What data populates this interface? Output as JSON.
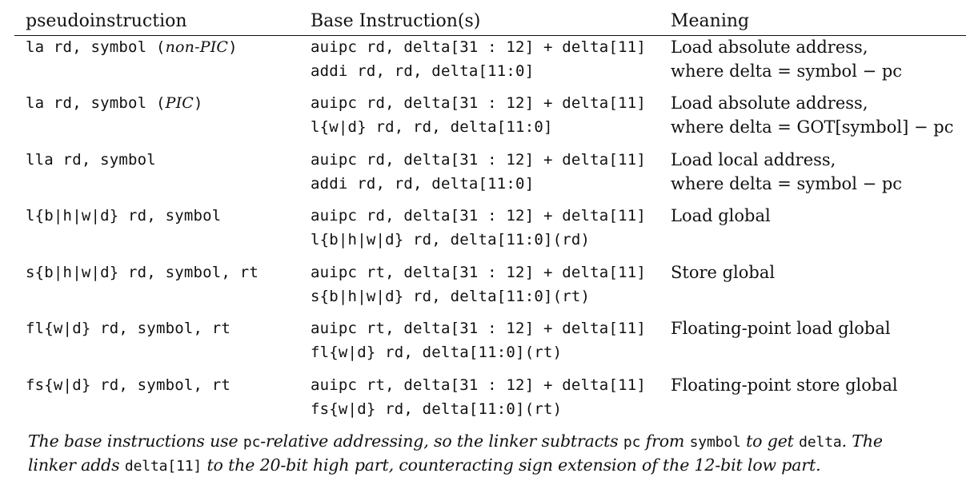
{
  "header": {
    "col1": "pseudoinstruction",
    "col2": "Base Instruction(s)",
    "col3": "Meaning"
  },
  "rows": [
    {
      "pseudo_main": "la rd, symbol (",
      "pseudo_italic": "non-PIC",
      "pseudo_close": ")",
      "base1": "auipc rd, delta[31 : 12] + delta[11]",
      "base2": "addi rd, rd, delta[11:0]",
      "meaning1": "Load absolute address,",
      "meaning2": "where delta = symbol − pc"
    },
    {
      "pseudo_main": "la rd, symbol (",
      "pseudo_italic": "PIC",
      "pseudo_close": ")",
      "base1": "auipc rd, delta[31 : 12] + delta[11]",
      "base2": "l{w|d} rd, rd, delta[11:0]",
      "meaning1": "Load absolute address,",
      "meaning2": "where delta = GOT[symbol] − pc"
    },
    {
      "pseudo_main": "lla rd, symbol",
      "pseudo_italic": "",
      "pseudo_close": "",
      "base1": "auipc rd, delta[31 : 12] + delta[11]",
      "base2": "addi rd, rd, delta[11:0]",
      "meaning1": "Load local address,",
      "meaning2": "where delta = symbol − pc"
    },
    {
      "pseudo_main": "l{b|h|w|d} rd, symbol",
      "pseudo_italic": "",
      "pseudo_close": "",
      "base1": "auipc rd, delta[31 : 12] + delta[11]",
      "base2": "l{b|h|w|d} rd, delta[11:0](rd)",
      "meaning1": "Load global",
      "meaning2": ""
    },
    {
      "pseudo_main": "s{b|h|w|d} rd, symbol, rt",
      "pseudo_italic": "",
      "pseudo_close": "",
      "base1": "auipc rt, delta[31 : 12] + delta[11]",
      "base2": "s{b|h|w|d} rd, delta[11:0](rt)",
      "meaning1": "Store global",
      "meaning2": ""
    },
    {
      "pseudo_main": "fl{w|d} rd, symbol, rt",
      "pseudo_italic": "",
      "pseudo_close": "",
      "base1": "auipc rt, delta[31 : 12] + delta[11]",
      "base2": "fl{w|d} rd, delta[11:0](rt)",
      "meaning1": "Floating-point load global",
      "meaning2": ""
    },
    {
      "pseudo_main": "fs{w|d} rd, symbol, rt",
      "pseudo_italic": "",
      "pseudo_close": "",
      "base1": "auipc rt, delta[31 : 12] + delta[11]",
      "base2": "fs{w|d} rd, delta[11:0](rt)",
      "meaning1": "Floating-point store global",
      "meaning2": ""
    }
  ],
  "caption": {
    "l1_a": "The base instructions use ",
    "l1_b": "pc",
    "l1_c": "-relative addressing, so the linker subtracts ",
    "l1_d": "pc",
    "l1_e": " from ",
    "l1_f": "symbol",
    "l1_g": " to get ",
    "l1_h": "delta",
    "l1_i": ". The",
    "l2_a": "linker adds ",
    "l2_b": "delta[11]",
    "l2_c": " to the 20-bit high part, counteracting sign extension of the 12-bit low part."
  }
}
